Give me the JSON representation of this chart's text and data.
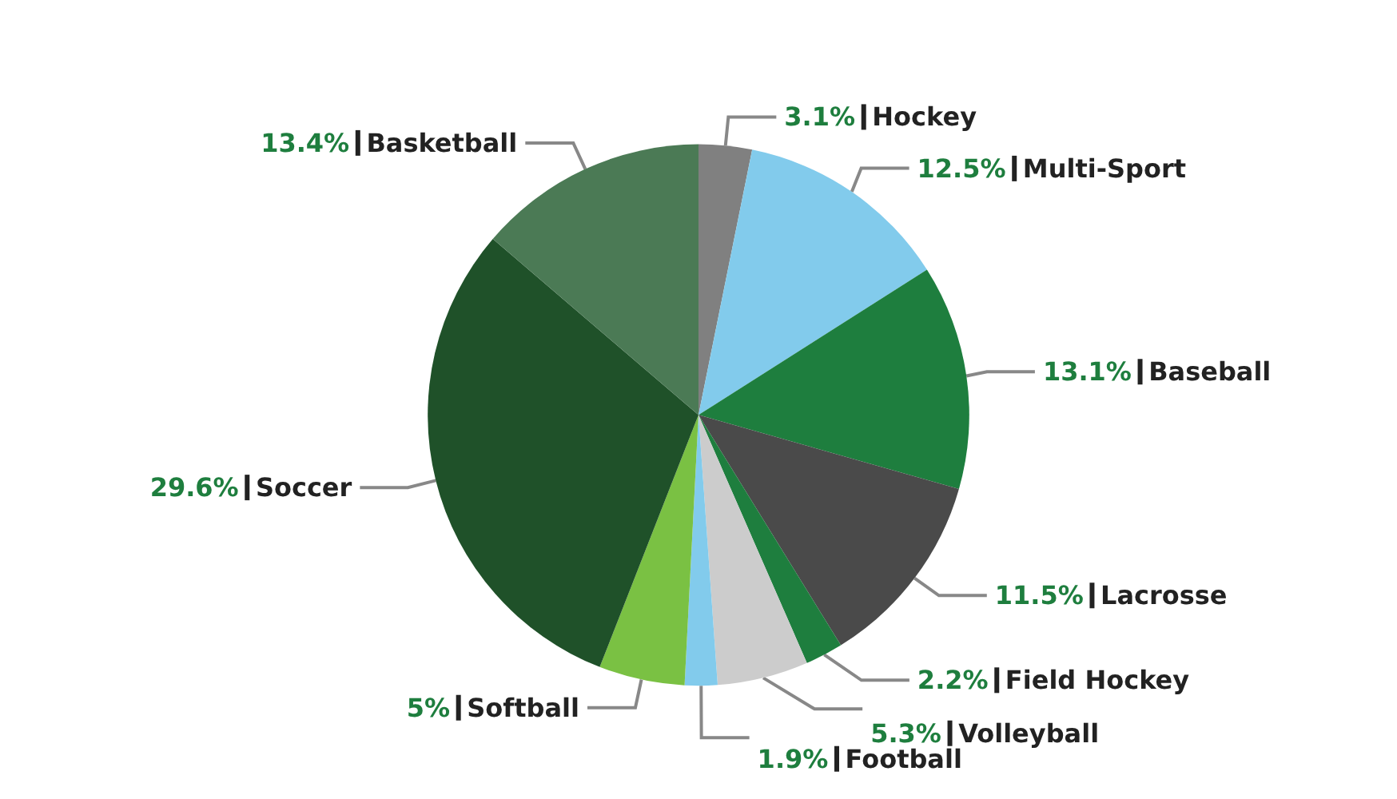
{
  "chart_data": {
    "type": "pie",
    "categories": [
      "Hockey",
      "Multi-Sport",
      "Baseball",
      "Lacrosse",
      "Field Hockey",
      "Volleyball",
      "Football",
      "Softball",
      "Soccer",
      "Basketball"
    ],
    "values": [
      3.1,
      12.5,
      13.1,
      11.5,
      2.2,
      5.3,
      1.9,
      5,
      29.6,
      13.4
    ],
    "colors": [
      "#808080",
      "#82cbec",
      "#1e7e3e",
      "#4a4a4a",
      "#1e7e3e",
      "#cccccc",
      "#82cbec",
      "#7ac143",
      "#1f5129",
      "#4b7a55"
    ],
    "value_labels": [
      "3.1%",
      "12.5%",
      "13.1%",
      "11.5%",
      "2.2%",
      "5.3%",
      "1.9%",
      "5%",
      "29.6%",
      "13.4%"
    ],
    "legend": false
  }
}
